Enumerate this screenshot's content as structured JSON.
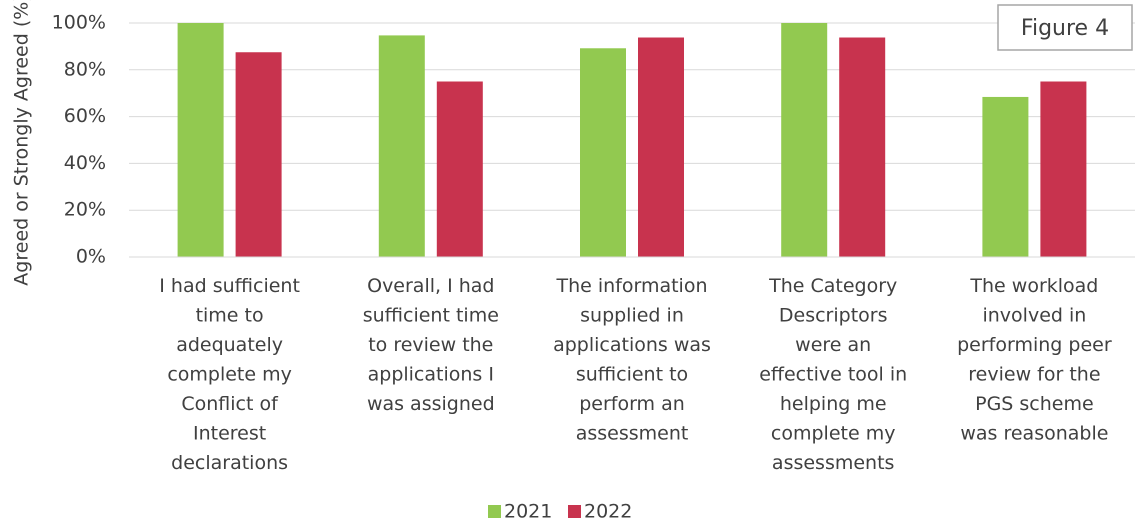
{
  "chart_data": {
    "type": "bar",
    "y_label": "Agreed or Strongly Agreed (%)",
    "annotation": "Figure 4",
    "categories": [
      "I had sufficient\ntime to\nadequately\ncomplete my\nConflict of\nInterest\ndeclarations",
      "Overall, I had\nsufficient time\nto review the\napplications I\nwas assigned",
      "The information\nsupplied in\napplications was\nsufficient to\nperform an\nassessment",
      "The Category\nDescriptors\nwere an\neffective tool in\nhelping me\ncomplete my\nassessments",
      "The workload\ninvolved in\nperforming peer\nreview for the\nPGS scheme\nwas reasonable"
    ],
    "series": [
      {
        "name": "2021",
        "color": "#92c950",
        "values": [
          100,
          94.7,
          89.2,
          100,
          68.4
        ]
      },
      {
        "name": "2022",
        "color": "#c8334e",
        "values": [
          87.5,
          75,
          93.8,
          93.8,
          75
        ]
      }
    ],
    "ylim": [
      0,
      100
    ],
    "yticks": [
      {
        "value": 0,
        "label": "0%"
      },
      {
        "value": 20,
        "label": "20%"
      },
      {
        "value": 40,
        "label": "40%"
      },
      {
        "value": 60,
        "label": "60%"
      },
      {
        "value": 80,
        "label": "80%"
      },
      {
        "value": 100,
        "label": "100%"
      }
    ],
    "grid": true,
    "legend": "bottom"
  }
}
